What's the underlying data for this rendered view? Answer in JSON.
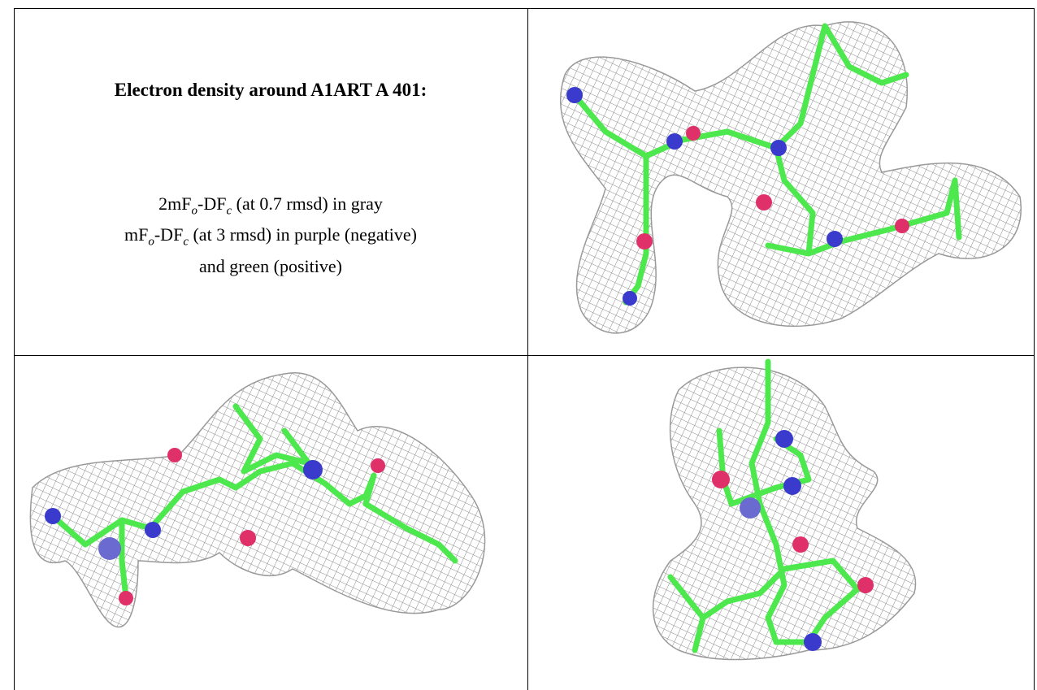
{
  "caption": {
    "title": "Electron density around A1ART A 401:",
    "lines": [
      {
        "parts": [
          "2mF",
          "o",
          "-DF",
          "c",
          " (at 0.7 rmsd) in gray"
        ]
      },
      {
        "parts": [
          "mF",
          "o",
          "-DF",
          "c",
          " (at 3 rmsd) in purple (negative)"
        ]
      },
      {
        "parts": [
          "and green (positive)"
        ]
      }
    ]
  }
}
